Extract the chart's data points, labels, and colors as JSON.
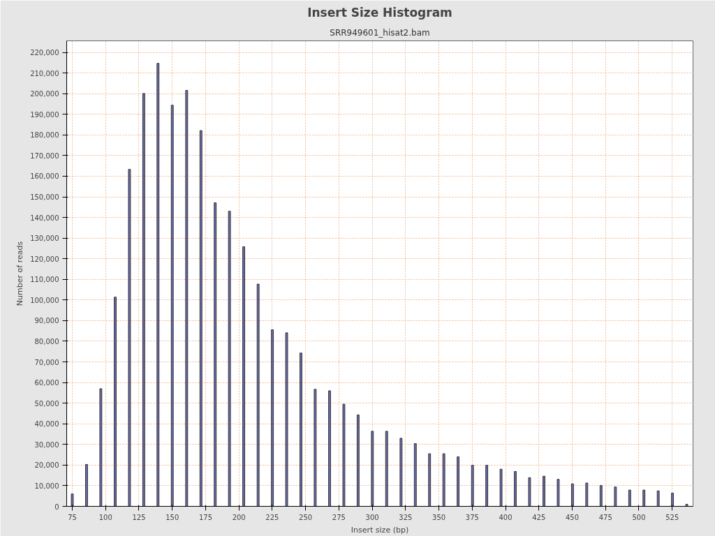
{
  "chart_data": {
    "type": "bar",
    "title": "Insert Size Histogram",
    "subtitle": "SRR949601_hisat2.bam",
    "xlabel": "Insert size (bp)",
    "ylabel": "Number of reads",
    "x": [
      75,
      85.7,
      96.4,
      107.2,
      117.9,
      128.6,
      139.3,
      150,
      160.8,
      171.5,
      182.2,
      192.9,
      203.6,
      214.4,
      225.1,
      235.8,
      246.5,
      257.2,
      268,
      278.7,
      289.4,
      300.1,
      310.8,
      321.6,
      332.3,
      343,
      353.7,
      364.4,
      375.2,
      385.9,
      396.6,
      407.3,
      418,
      428.8,
      439.5,
      450.2,
      460.9,
      471.6,
      482.4,
      493.1,
      503.8,
      514.5,
      525.2,
      535.9
    ],
    "series": [
      {
        "color": "#6b6bb0",
        "values": [
          6000,
          20300,
          57000,
          101400,
          163300,
          200100,
          214700,
          194400,
          201600,
          182100,
          147100,
          143000,
          125800,
          107700,
          85600,
          84100,
          74300,
          56700,
          56000,
          49500,
          44300,
          36400,
          36400,
          33000,
          30400,
          25500,
          25500,
          24000,
          19900,
          19900,
          18000,
          16900,
          13900,
          14600,
          13100,
          10900,
          11300,
          10100,
          9400,
          7900,
          7900,
          7500,
          6400,
          1000
        ]
      }
    ],
    "xlim": [
      70.8,
      540.6
    ],
    "ylim": [
      0,
      225600
    ],
    "xticks": [
      75,
      100,
      125,
      150,
      175,
      200,
      225,
      250,
      275,
      300,
      325,
      350,
      375,
      400,
      425,
      450,
      475,
      500,
      525
    ],
    "yticks": [
      {
        "value": 0,
        "label": "0"
      },
      {
        "value": 10000,
        "label": "10,000"
      },
      {
        "value": 20000,
        "label": "20,000"
      },
      {
        "value": 30000,
        "label": "30,000"
      },
      {
        "value": 40000,
        "label": "40,000"
      },
      {
        "value": 50000,
        "label": "50,000"
      },
      {
        "value": 60000,
        "label": "60,000"
      },
      {
        "value": 70000,
        "label": "70,000"
      },
      {
        "value": 80000,
        "label": "80,000"
      },
      {
        "value": 90000,
        "label": "90,000"
      },
      {
        "value": 100000,
        "label": "100,000"
      },
      {
        "value": 110000,
        "label": "110,000"
      },
      {
        "value": 120000,
        "label": "120,000"
      },
      {
        "value": 130000,
        "label": "130,000"
      },
      {
        "value": 140000,
        "label": "140,000"
      },
      {
        "value": 150000,
        "label": "150,000"
      },
      {
        "value": 160000,
        "label": "160,000"
      },
      {
        "value": 170000,
        "label": "170,000"
      },
      {
        "value": 180000,
        "label": "180,000"
      },
      {
        "value": 190000,
        "label": "190,000"
      },
      {
        "value": 200000,
        "label": "200,000"
      },
      {
        "value": 210000,
        "label": "210,000"
      },
      {
        "value": 220000,
        "label": "220,000"
      }
    ],
    "grid": true
  }
}
